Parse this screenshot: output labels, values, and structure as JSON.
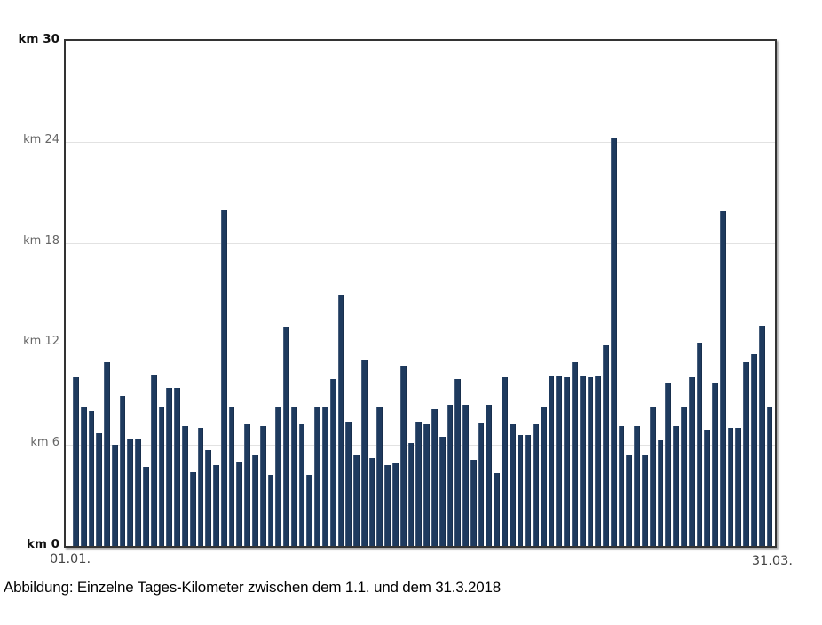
{
  "caption": "Abbildung: Einzelne Tages-Kilometer zwischen dem 1.1. und dem 31.3.2018",
  "chart_data": {
    "type": "bar",
    "title": "",
    "xlabel": "",
    "ylabel": "km",
    "days": 90,
    "x_start_label": "01.01.",
    "x_end_label": "31.03.",
    "ylim": [
      0,
      30
    ],
    "grid": "horizontal",
    "bar_color": "#1e3a5e",
    "grid_color": "#e2e2e2",
    "y_ticks": [
      {
        "label": "km 30",
        "value": 30,
        "bold": true
      },
      {
        "label": "km 24",
        "value": 24,
        "bold": false
      },
      {
        "label": "km 18",
        "value": 18,
        "bold": false
      },
      {
        "label": "km 12",
        "value": 12,
        "bold": false
      },
      {
        "label": "km 6",
        "value": 6,
        "bold": false
      },
      {
        "label": "km 0",
        "value": 0,
        "bold": true
      }
    ],
    "gridline_values": [
      24,
      18,
      12,
      6
    ],
    "values": [
      10.0,
      8.3,
      8.0,
      6.7,
      10.9,
      6.0,
      8.9,
      6.4,
      6.4,
      4.7,
      10.2,
      8.3,
      9.4,
      9.4,
      7.1,
      4.4,
      7.0,
      5.7,
      4.8,
      20.0,
      8.3,
      5.0,
      7.2,
      5.4,
      7.1,
      4.2,
      8.3,
      13.0,
      8.3,
      7.2,
      4.2,
      8.3,
      8.3,
      9.9,
      14.9,
      7.4,
      5.4,
      11.1,
      5.2,
      8.3,
      4.8,
      4.9,
      10.7,
      6.1,
      7.4,
      7.2,
      8.1,
      6.5,
      8.4,
      9.9,
      8.4,
      5.1,
      7.3,
      8.4,
      4.3,
      10.0,
      7.2,
      6.6,
      6.6,
      7.2,
      8.3,
      10.1,
      10.1,
      10.0,
      10.9,
      10.1,
      10.0,
      10.1,
      11.9,
      24.2,
      7.1,
      5.4,
      7.1,
      5.4,
      8.3,
      6.3,
      9.7,
      7.1,
      8.3,
      10.0,
      12.1,
      6.9,
      9.7,
      19.9,
      7.0,
      7.0,
      10.9,
      11.4,
      13.1,
      8.3
    ]
  }
}
